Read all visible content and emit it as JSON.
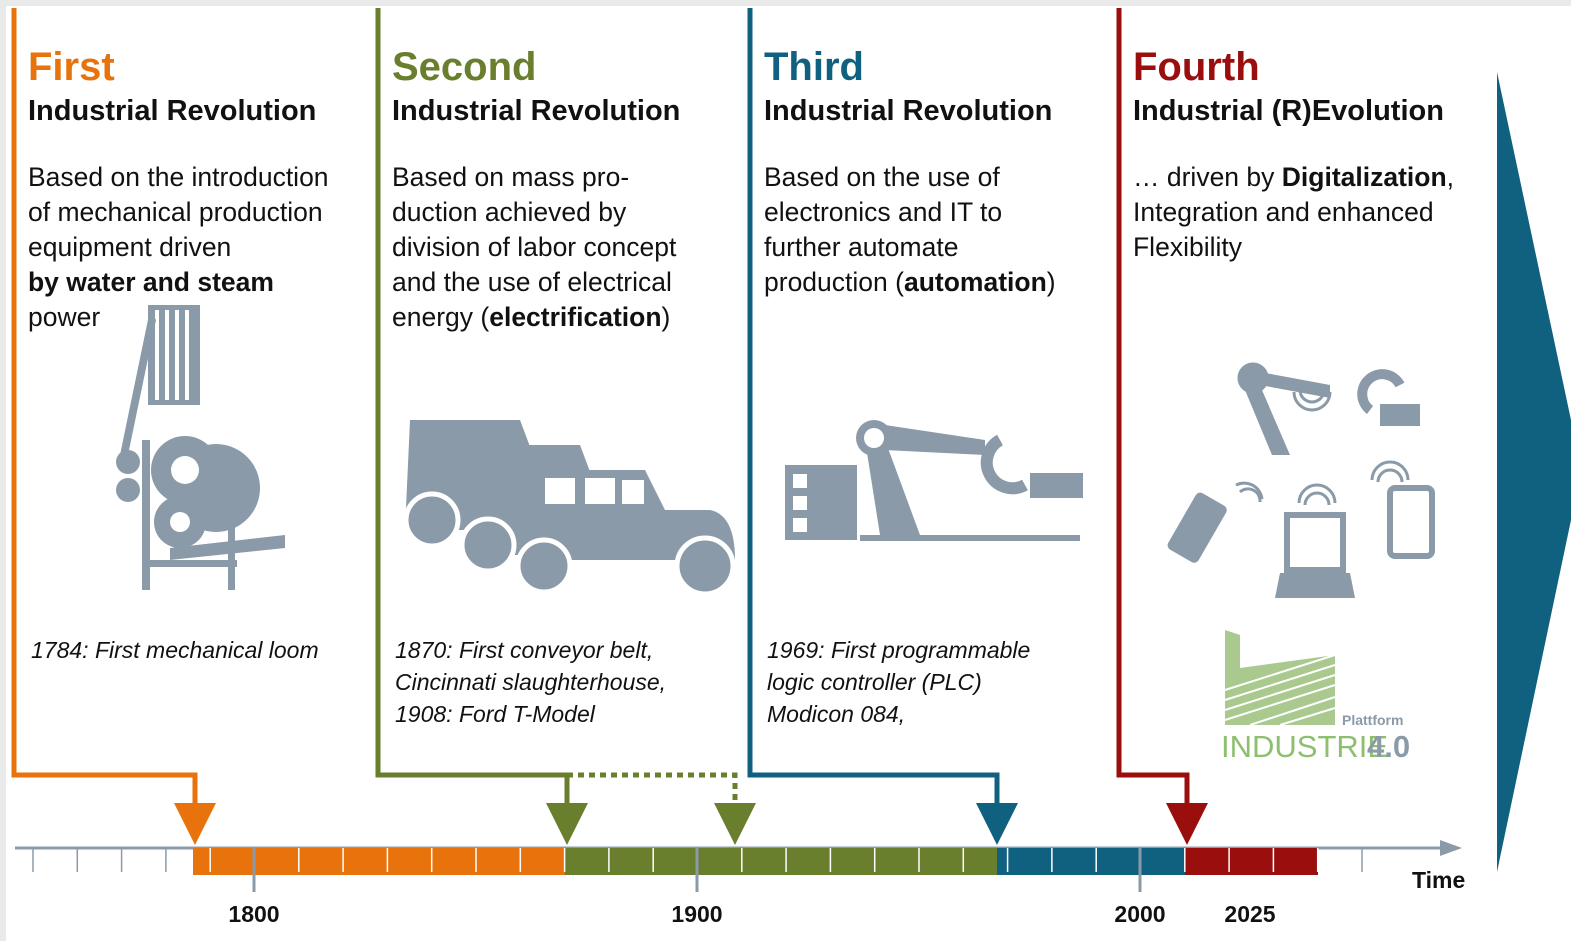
{
  "columns": [
    {
      "ordinal": "First",
      "subtitle": "Industrial Revolution",
      "color": "#e8720c",
      "description": [
        [
          {
            "text": "Based on the introduction"
          }
        ],
        [
          {
            "text": "of mechanical production"
          }
        ],
        [
          {
            "text": "equipment driven"
          }
        ],
        [
          {
            "text": "by water and steam",
            "bold": true
          }
        ],
        [
          {
            "text": "power"
          }
        ]
      ],
      "caption": [
        "1784: First mechanical loom"
      ]
    },
    {
      "ordinal": "Second",
      "subtitle": "Industrial Revolution",
      "color": "#6a7f2e",
      "description": [
        [
          {
            "text": "Based on mass pro-"
          }
        ],
        [
          {
            "text": "duction achieved by"
          }
        ],
        [
          {
            "text": "division of labor concept"
          }
        ],
        [
          {
            "text": "and the use of electrical"
          }
        ],
        [
          {
            "text": "energy ("
          },
          {
            "text": "electrification",
            "bold": true
          },
          {
            "text": ")"
          }
        ]
      ],
      "caption": [
        "1870: First conveyor belt,",
        "Cincinnati slaughterhouse,",
        "1908: Ford T-Model"
      ]
    },
    {
      "ordinal": "Third",
      "subtitle": "Industrial Revolution",
      "color": "#10607f",
      "description": [
        [
          {
            "text": "Based on the use of"
          }
        ],
        [
          {
            "text": "electronics and IT to"
          }
        ],
        [
          {
            "text": "further automate"
          }
        ],
        [
          {
            "text": "production ("
          },
          {
            "text": "automation",
            "bold": true
          },
          {
            "text": ")"
          }
        ]
      ],
      "caption": [
        "1969: First programmable",
        "logic controller (PLC)",
        "Modicon 084,"
      ]
    },
    {
      "ordinal": "Fourth",
      "subtitle": "Industrial (R)Evolution",
      "color": "#9b0e0e",
      "description": [
        [
          {
            "text": "… driven by "
          },
          {
            "text": "Digitalization",
            "bold": true
          },
          {
            "text": ","
          }
        ],
        [
          {
            "text": "Integration and enhanced"
          }
        ],
        [
          {
            "text": "Flexibility"
          }
        ]
      ]
    }
  ],
  "timeline": {
    "labels": [
      "1800",
      "1900",
      "2000",
      "2025"
    ],
    "axis_label": "Time"
  },
  "logo": {
    "small": "Plattform",
    "main": "INDUSTRIE",
    "version": "4.0"
  }
}
